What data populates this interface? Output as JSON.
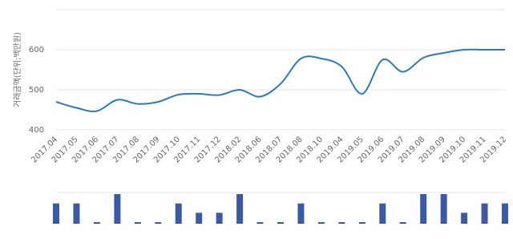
{
  "chart_data": {
    "type": "line",
    "y_label": "거래금액(단위:백만원)",
    "categories": [
      "2017.04",
      "2017.05",
      "2017.06",
      "2017.07",
      "2017.08",
      "2017.09",
      "2017.10",
      "2017.11",
      "2017.12",
      "2018.02",
      "2018.06",
      "2018.07",
      "2018.08",
      "2018.10",
      "2019.04",
      "2019.05",
      "2019.06",
      "2019.07",
      "2019.08",
      "2019.09",
      "2019.10",
      "2019.11",
      "2019.12"
    ],
    "series": [
      {
        "color": "#2b7bb9",
        "values": [
          470,
          455,
          447,
          475,
          465,
          470,
          488,
          490,
          487,
          500,
          483,
          515,
          578,
          578,
          558,
          490,
          575,
          545,
          580,
          592,
          600,
          600,
          600
        ]
      }
    ],
    "volume": {
      "color": "#3a5aa8",
      "values": [
        2,
        2,
        0,
        3,
        0,
        0,
        2,
        1,
        1,
        3,
        0,
        0,
        2,
        0,
        0,
        0,
        2,
        0,
        3,
        3,
        1,
        2,
        2
      ]
    },
    "ylim": [
      400,
      700
    ],
    "yticks": [
      400,
      500,
      600
    ],
    "grid": true
  }
}
